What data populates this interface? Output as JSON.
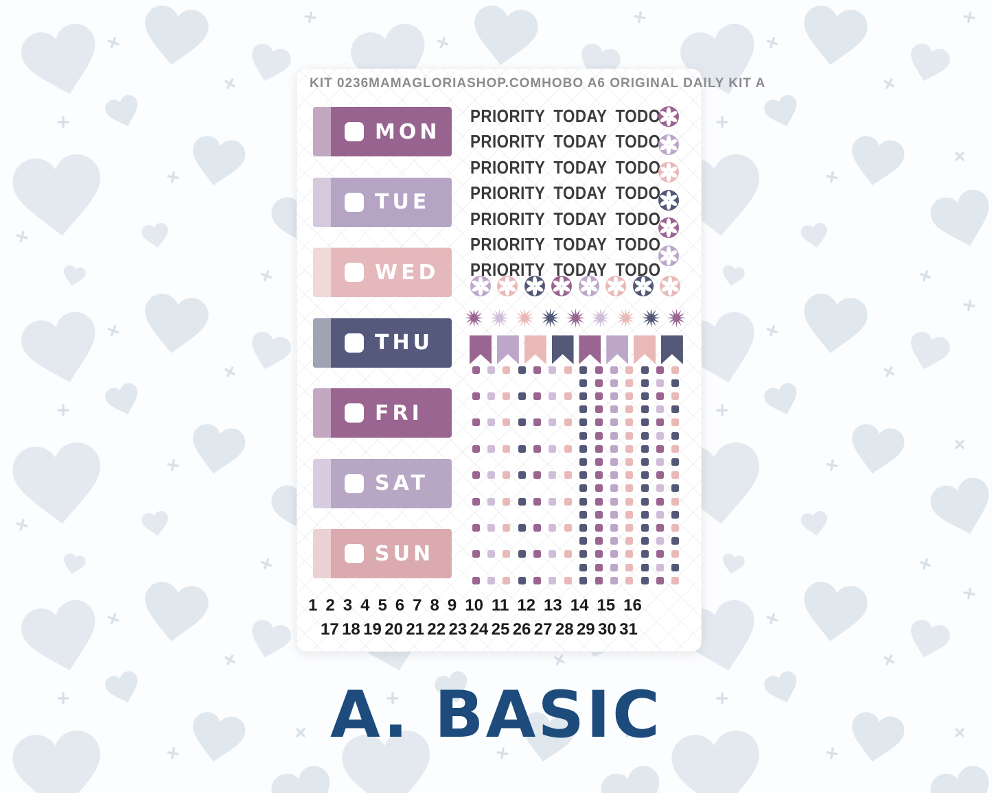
{
  "header": {
    "kit_id": "KIT 0236",
    "shop": "MAMAGLORIASHOP.COM",
    "product": "HOBO A6 ORIGINAL DAILY KIT A"
  },
  "caption": {
    "text": "A. BASIC",
    "color": "#1D4B7C"
  },
  "palette": {
    "purple": "#9A6590",
    "lavender": "#BDA7C9",
    "lavender_light": "#CFBDD9",
    "pink": "#E9B9B8",
    "navy": "#535877"
  },
  "days": [
    {
      "label": "MON",
      "color": "#97638F",
      "strip": "#C3A7C0"
    },
    {
      "label": "TUE",
      "color": "#B6A4C5",
      "strip": "#D5C9DE"
    },
    {
      "label": "WED",
      "color": "#E5B9BB",
      "strip": "#F1D8D9"
    },
    {
      "label": "THU",
      "color": "#555A7D",
      "strip": "#9FA3B4"
    },
    {
      "label": "FRI",
      "color": "#9A6590",
      "strip": "#C4A8C1"
    },
    {
      "label": "SAT",
      "color": "#B8A7C4",
      "strip": "#D7CCE0"
    },
    {
      "label": "SUN",
      "color": "#DAAAAF",
      "strip": "#ECD1D4"
    }
  ],
  "priority_rows": [
    {
      "label": "PRIORITY TODAY TODO"
    },
    {
      "label": "PRIORITY TODAY TODO"
    },
    {
      "label": "PRIORITY TODAY TODO"
    },
    {
      "label": "PRIORITY TODAY TODO"
    },
    {
      "label": "PRIORITY TODAY TODO"
    },
    {
      "label": "PRIORITY TODAY TODO"
    },
    {
      "label": "PRIORITY TODAY TODO"
    }
  ],
  "priority_dot_column": {
    "colors": [
      "purple",
      "lavender",
      "pink",
      "navy",
      "purple",
      "lavender"
    ]
  },
  "dot_row": {
    "colors": [
      "lavender",
      "pink",
      "navy",
      "purple",
      "lavender",
      "pink",
      "navy",
      "pink"
    ]
  },
  "burst_row": {
    "colors": [
      "purple",
      "lavender_light",
      "pink",
      "navy",
      "purple",
      "lavender_light",
      "pink",
      "navy",
      "purple"
    ]
  },
  "flag_row": {
    "colors": [
      "purple",
      "lavender",
      "pink",
      "navy",
      "purple",
      "lavender",
      "pink",
      "navy"
    ]
  },
  "checkbox_grid": {
    "rows": 17,
    "left_columns": [
      "purple",
      "lavender_light",
      "pink",
      "navy",
      "purple",
      "lavender_light",
      "pink"
    ],
    "right_columns_even": [
      "navy",
      "purple",
      "lavender",
      "pink",
      "navy",
      "purple",
      "pink"
    ],
    "right_columns_odd": [
      "navy",
      "purple",
      "lavender",
      "pink",
      "navy",
      "lavender_light",
      "navy"
    ]
  },
  "dates": {
    "row1": [
      "1",
      "2",
      "3",
      "4",
      "5",
      "6",
      "7",
      "8",
      "9",
      "10",
      "11",
      "12",
      "13",
      "14",
      "15",
      "16"
    ],
    "row2": [
      "17",
      "18",
      "19",
      "20",
      "21",
      "22",
      "23",
      "24",
      "25",
      "26",
      "27",
      "28",
      "29",
      "30",
      "31"
    ]
  }
}
